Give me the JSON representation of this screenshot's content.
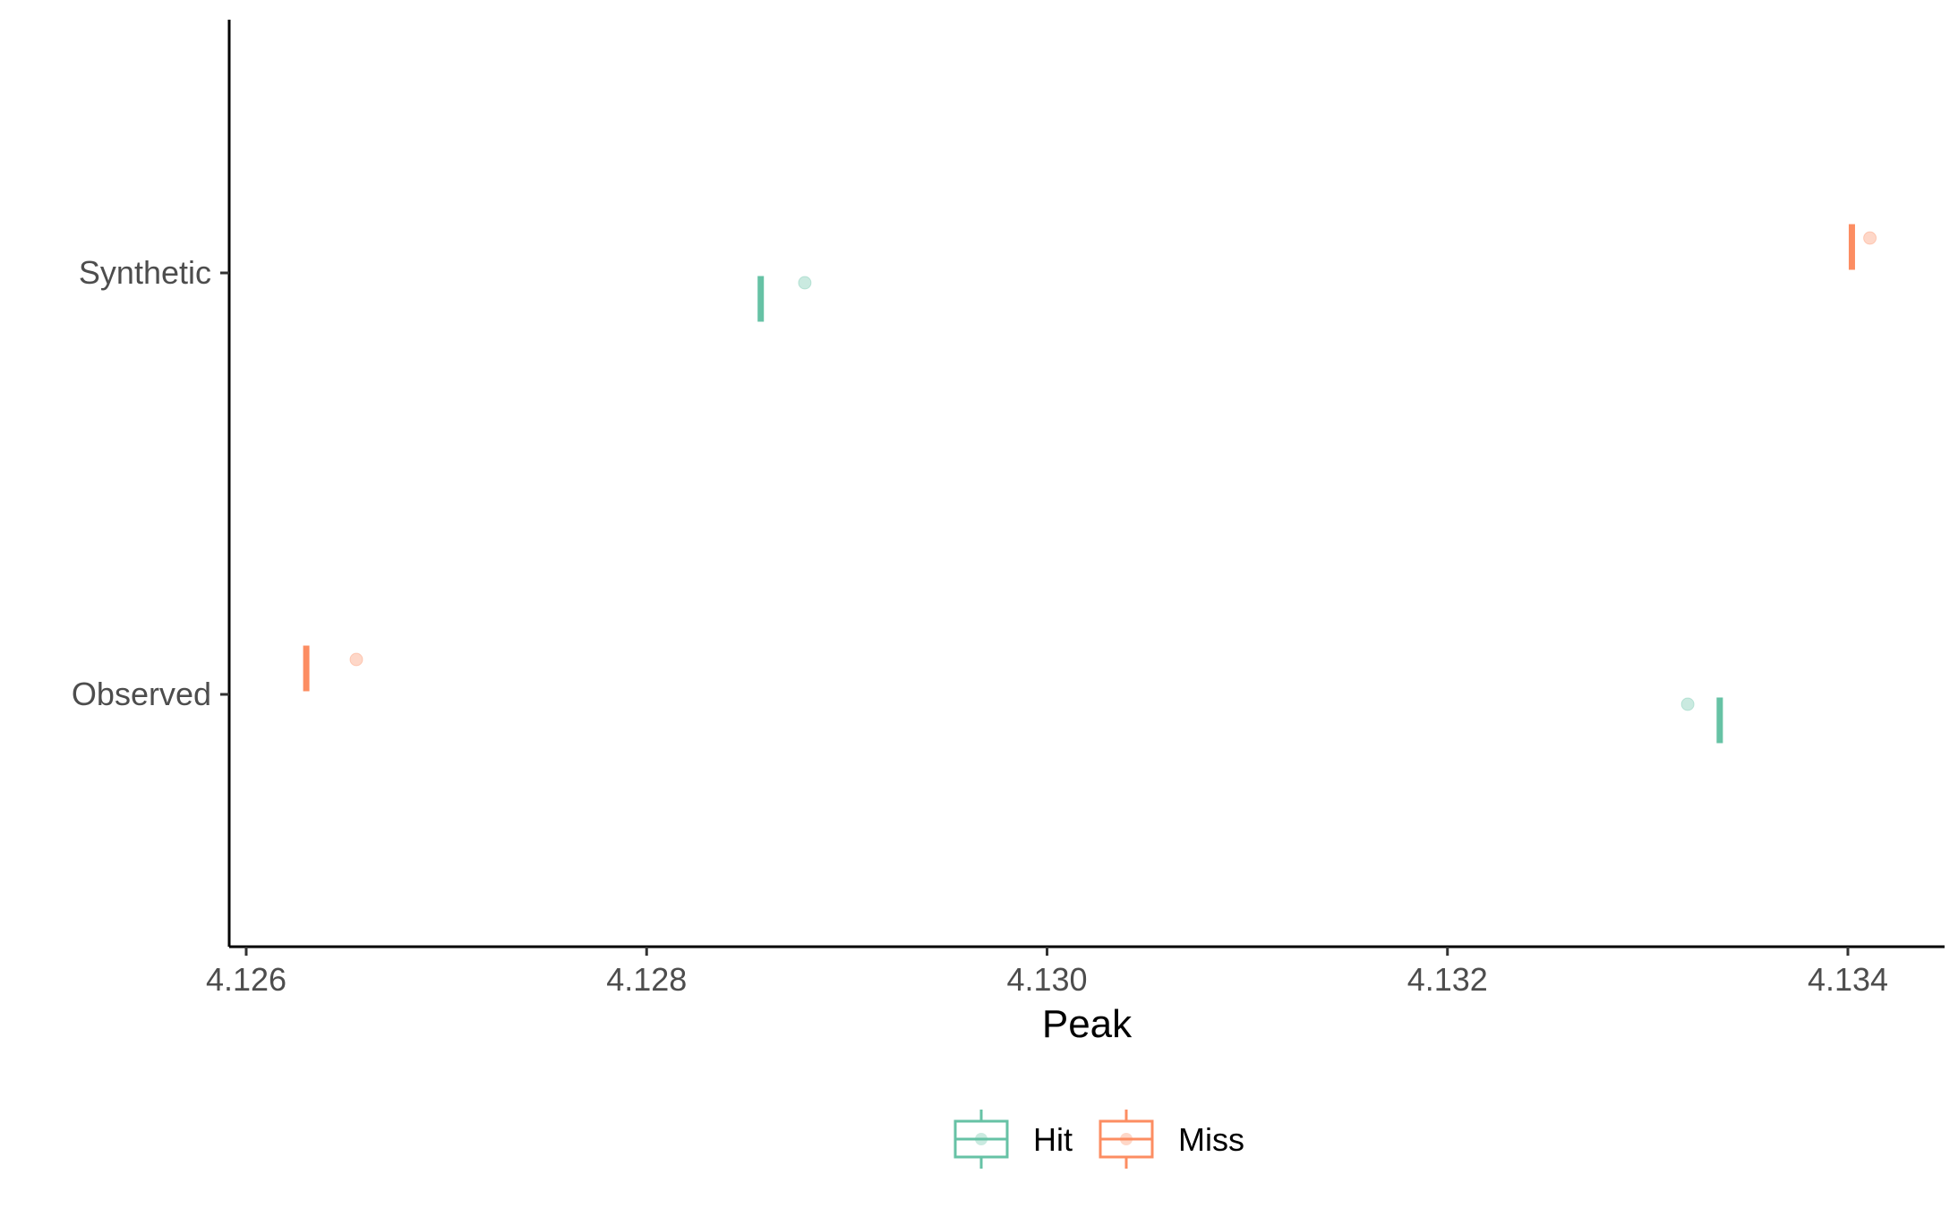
{
  "chart_data": {
    "type": "boxplot",
    "xlabel": "Peak",
    "ylabel": "",
    "xlim": [
      4.126,
      4.1345
    ],
    "x_ticks": [
      "4.126",
      "4.128",
      "4.130",
      "4.132",
      "4.134"
    ],
    "y_categories": [
      "Synthetic",
      "Observed"
    ],
    "orientation": "horizontal",
    "grid": false,
    "legend_position": "bottom",
    "series": [
      {
        "name": "Hit",
        "color": "#66c2a5",
        "boxes": [
          {
            "category": "Synthetic",
            "value": 4.12857,
            "outlier": 4.12879
          },
          {
            "category": "Observed",
            "value": 4.13336,
            "outlier": 4.1332
          }
        ]
      },
      {
        "name": "Miss",
        "color": "#fc8d62",
        "boxes": [
          {
            "category": "Synthetic",
            "value": 4.13402,
            "outlier": 4.13411
          },
          {
            "category": "Observed",
            "value": 4.1263,
            "outlier": 4.12655
          }
        ]
      }
    ]
  }
}
